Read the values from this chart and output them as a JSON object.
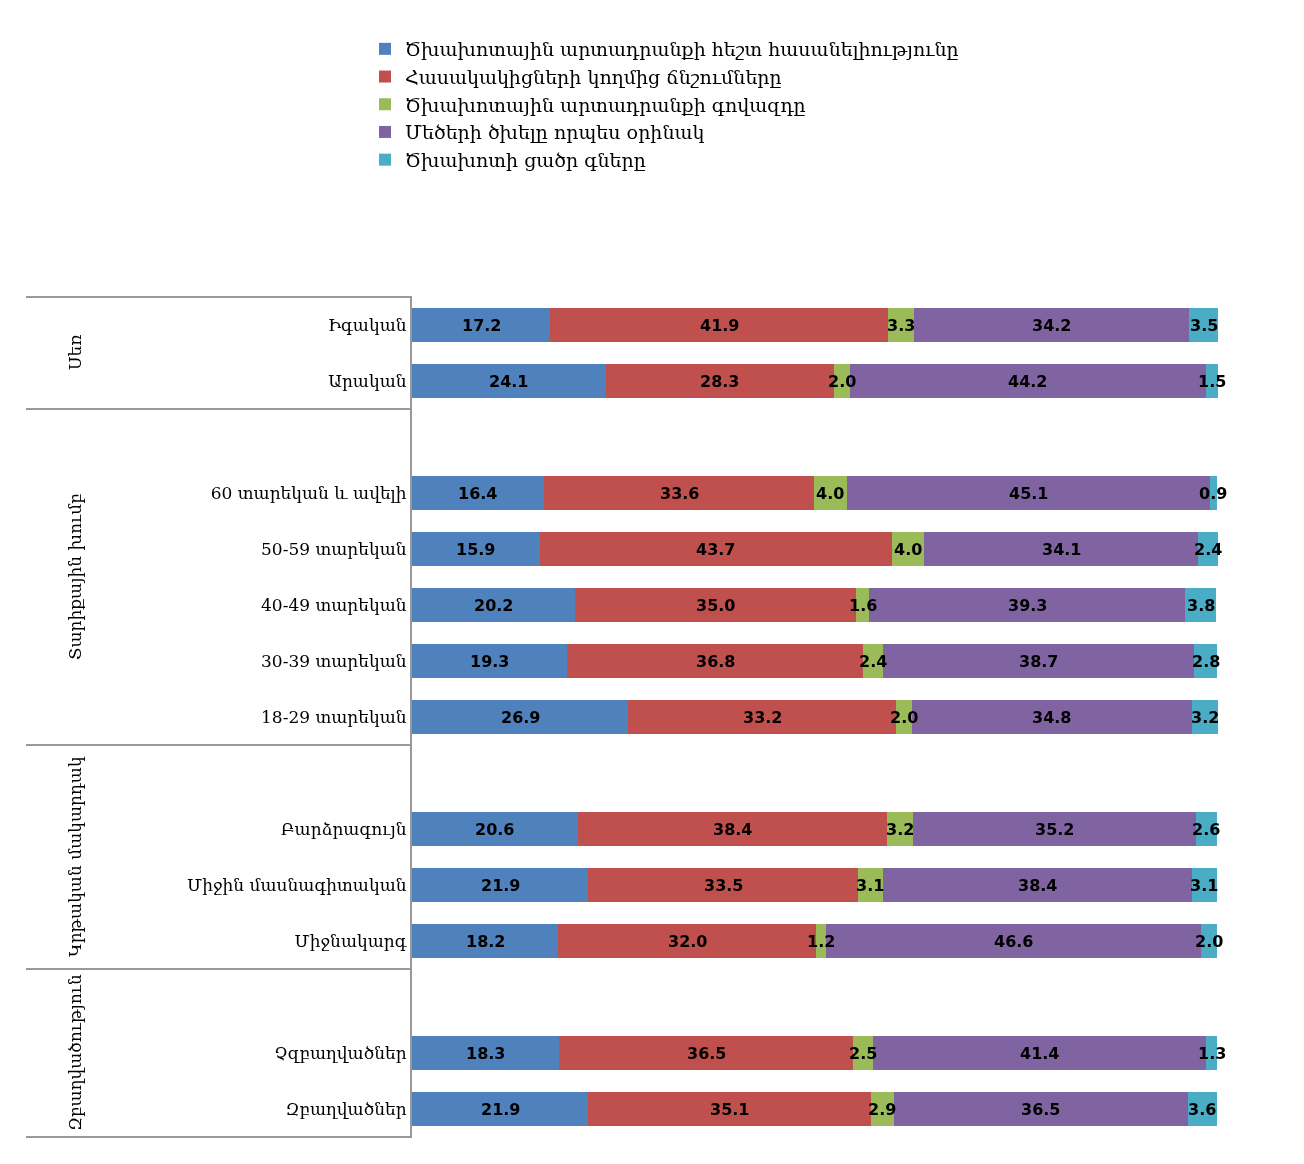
{
  "chart_data": {
    "type": "bar",
    "orientation": "horizontal",
    "stacked": true,
    "legend": "top",
    "categories": [
      "Իգական",
      "Արական",
      null,
      "60 տարեկան և ավելի",
      "50-59 տարեկան",
      "40-49 տարեկան",
      "30-39 տարեկան",
      "18-29 տարեկան",
      null,
      "Բարձրագույն",
      "Միջին մասնագիտական",
      "Միջնակարգ",
      null,
      "Չզբաղվածներ",
      "Զբաղվածներ"
    ],
    "series": [
      {
        "name": "Ծխախոտային արտադրանքի հեշտ հասանելիությունը",
        "color": "#4f81bd",
        "values": [
          17.2,
          24.1,
          null,
          16.4,
          15.9,
          20.2,
          19.3,
          26.9,
          null,
          20.6,
          21.9,
          18.2,
          null,
          18.3,
          21.9
        ],
        "value_labels": [
          "17.2",
          "24.1",
          null,
          "16.4",
          "15.9",
          "20.2",
          "19.3",
          "26.9",
          null,
          "20.6",
          "21.9",
          "18.2",
          null,
          "18.3",
          "21.9"
        ]
      },
      {
        "name": "Հասակակիցների կողմից ճնշումները",
        "color": "#c0504d",
        "values": [
          41.9,
          28.3,
          null,
          33.6,
          43.7,
          35.0,
          36.8,
          33.2,
          null,
          38.4,
          33.5,
          32.0,
          null,
          36.5,
          35.1
        ],
        "value_labels": [
          "41.9",
          "28.3",
          null,
          "33.6",
          "43.7",
          "35.0",
          "36.8",
          "33.2",
          null,
          "38.4",
          "33.5",
          "32.0",
          null,
          "36.5",
          "35.1"
        ]
      },
      {
        "name": "Ծխախոտային արտադրանքի գովազդը",
        "color": "#9bbb59",
        "values": [
          3.3,
          2.0,
          null,
          4.0,
          4.0,
          1.6,
          2.4,
          2.0,
          null,
          3.2,
          3.1,
          1.2,
          null,
          2.5,
          2.9
        ],
        "value_labels": [
          "3.3",
          "2.0",
          null,
          "4.0",
          "4.0",
          "1.6",
          "2.4",
          "2.0",
          null,
          "3.2",
          "3.1",
          "1.2",
          null,
          "2.5",
          "2.9"
        ]
      },
      {
        "name": "Մեծերի ծխելը որպես օրինակ",
        "color": "#8064a2",
        "values": [
          34.2,
          44.2,
          null,
          45.1,
          34.1,
          39.3,
          38.7,
          34.8,
          null,
          35.2,
          38.4,
          46.6,
          null,
          41.4,
          36.5
        ],
        "value_labels": [
          "34.2",
          "44.2",
          null,
          "45.1",
          "34.1",
          "39.3",
          "38.7",
          "34.8",
          null,
          "35.2",
          "38.4",
          "46.6",
          null,
          "41.4",
          "36.5"
        ]
      },
      {
        "name": "Ծխախոտի ցածր գները",
        "color": "#4bacc6",
        "values": [
          3.5,
          1.5,
          null,
          0.9,
          2.4,
          3.8,
          2.8,
          3.2,
          null,
          2.6,
          3.1,
          2.0,
          null,
          1.3,
          3.6
        ],
        "value_labels": [
          "3.5",
          "1.5",
          null,
          "0.9",
          "2.4",
          "3.8",
          "2.8",
          "3.2",
          null,
          "2.6",
          "3.1",
          "2.0",
          null,
          "1.3",
          "3.6"
        ]
      }
    ],
    "annotations": [
      "Սեռ",
      "Տարիքային խումբ",
      "Կրթական մակարդակ",
      "Զբաղվածություն"
    ]
  }
}
